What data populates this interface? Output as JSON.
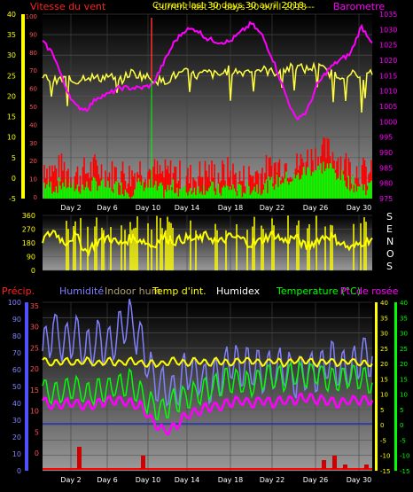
{
  "header": {
    "wind_label": "Vitesse du vent",
    "title": "Current last 30 days  30 avril 2018",
    "title_overlap": "Current last 30 days  30 avril 2018",
    "dash": "---",
    "barometer_label": "Barometre"
  },
  "colors": {
    "wind_label": "#ff2020",
    "title": "#ffff00",
    "barometer": "#ff00ff",
    "gust": "#ff0000",
    "avg_wind": "#00ff00",
    "temperature_top": "#ffff40",
    "direction": "#ffff00",
    "humidity": "#8080ff",
    "indoor_hum": "#b0a070",
    "indoor_temp": "#ffff00",
    "humidex": "#ffffff",
    "outdoor_temp": "#00ff00",
    "dewpoint": "#ff00ff",
    "rain": "#ff0000",
    "right_scale_green": "#00ff00"
  },
  "middle": {
    "compass": [
      "S",
      "E",
      "N",
      "O",
      "S"
    ]
  },
  "bottom_legend": {
    "precip": "Précip.",
    "humidity": "Humidité",
    "indoor_hum": "Indoor hum",
    "indoor_temp": "Temp d'int.",
    "humidex": "Humidex",
    "temperature": "Temperature (°C)",
    "dewpoint": "Pt. de rosée"
  },
  "chart_data": [
    {
      "type": "area",
      "title": "Current last 30 days  30 avril 2018",
      "x_tick_labels": [
        "Day 2",
        "Day 6",
        "Day 10",
        "Day 14",
        "Day 18",
        "Day 22",
        "Day 26",
        "Day 30"
      ],
      "y_left_ticks": [
        40,
        35,
        30,
        25,
        20,
        15,
        10,
        5,
        0,
        -5
      ],
      "y_left_ticks_inner": [
        100,
        90,
        80,
        70,
        60,
        50,
        40,
        30,
        20,
        10,
        0
      ],
      "y_right_ticks": [
        1035,
        1030,
        1025,
        1020,
        1015,
        1010,
        1005,
        1000,
        995,
        990,
        985,
        980,
        975
      ],
      "ylim_left": [
        -5,
        40
      ],
      "ylim_right": [
        975,
        1035
      ],
      "series": [
        {
          "name": "Barometre",
          "values": [
            1026,
            1022,
            1012,
            1005,
            1004,
            1008,
            1009,
            1011,
            1011,
            1011,
            1012,
            1019,
            1026,
            1030,
            1030,
            1027,
            1026,
            1026,
            1029,
            1032,
            1028,
            1020,
            1010,
            1001,
            1003,
            1012,
            1017,
            1020,
            1022,
            1031,
            1026
          ]
        },
        {
          "name": "Temperature",
          "values": [
            1015,
            1013,
            1014,
            1013,
            1015,
            1014,
            1015,
            1013,
            1016,
            1015,
            1014,
            1013,
            1015,
            1016,
            1015,
            1016,
            1015,
            1017,
            1016,
            1017,
            1017,
            1016,
            1017,
            1018,
            1017,
            1018,
            1016,
            1015,
            1016,
            1014,
            1016
          ]
        },
        {
          "name": "Gust",
          "values": [
            7,
            5,
            6,
            4,
            5,
            6,
            4,
            5,
            4,
            6,
            5,
            4,
            5,
            3,
            4,
            5,
            4,
            5,
            3,
            4,
            5,
            6,
            7,
            6,
            8,
            9,
            10,
            8,
            6,
            5,
            4
          ]
        },
        {
          "name": "Avg wind",
          "values": [
            3,
            2,
            3,
            2,
            2,
            3,
            2,
            2,
            1,
            3,
            2,
            1,
            2,
            1,
            2,
            2,
            1,
            2,
            1,
            2,
            2,
            3,
            4,
            4,
            6,
            7,
            7,
            5,
            3,
            2,
            2
          ]
        }
      ]
    },
    {
      "type": "line",
      "name": "Wind direction",
      "x_tick_labels": [
        "Day 2",
        "Day 6",
        "Day 10",
        "Day 14",
        "Day 18",
        "Day 22",
        "Day 26",
        "Day 30"
      ],
      "y_ticks": [
        360,
        270,
        180,
        90,
        0
      ],
      "ylim": [
        0,
        360
      ],
      "compass": [
        "S",
        "E",
        "N",
        "O",
        "S"
      ],
      "values": [
        200,
        260,
        180,
        230,
        120,
        190,
        220,
        170,
        210,
        200,
        160,
        220,
        190,
        210,
        200,
        230,
        180,
        220,
        210,
        170,
        200,
        240,
        190,
        220,
        150,
        200,
        230,
        190,
        140,
        180,
        210
      ]
    },
    {
      "type": "line",
      "x_tick_labels": [
        "Day 2",
        "Day 6",
        "Day 10",
        "Day 14",
        "Day 18",
        "Day 22",
        "Day 26",
        "Day 30"
      ],
      "y_left_ticks_blue": [
        100,
        90,
        80,
        70,
        60,
        50,
        40,
        30,
        20,
        10,
        0
      ],
      "y_left_ticks_red": [
        35,
        30,
        25,
        20,
        15,
        10,
        5,
        0
      ],
      "y_right_ticks": [
        40,
        35,
        30,
        25,
        20,
        15,
        10,
        5,
        0,
        -5,
        -10,
        -15
      ],
      "ylim_right": [
        -15,
        40
      ],
      "series": [
        {
          "name": "Humidité",
          "values": [
            70,
            85,
            75,
            80,
            70,
            78,
            72,
            85,
            90,
            75,
            55,
            50,
            45,
            60,
            58,
            52,
            55,
            65,
            62,
            60,
            58,
            60,
            62,
            55,
            60,
            58,
            65,
            62,
            60,
            70,
            68
          ]
        },
        {
          "name": "Temp d'int.",
          "values": [
            21,
            20,
            21,
            20,
            21,
            20,
            21,
            20,
            21,
            20,
            20,
            20,
            21,
            20,
            21,
            20,
            21,
            20,
            21,
            21,
            20,
            21,
            20,
            21,
            21,
            20,
            21,
            20,
            21,
            20,
            20
          ]
        },
        {
          "name": "Temperature (°C)",
          "values": [
            12,
            10,
            11,
            12,
            10,
            11,
            12,
            13,
            14,
            10,
            6,
            5,
            8,
            9,
            10,
            12,
            13,
            15,
            14,
            13,
            15,
            16,
            15,
            17,
            16,
            17,
            15,
            14,
            16,
            15,
            14
          ]
        },
        {
          "name": "Pt. de rosée",
          "values": [
            8,
            6,
            7,
            7,
            6,
            7,
            8,
            8,
            7,
            6,
            1,
            -2,
            -1,
            3,
            4,
            6,
            6,
            7,
            8,
            7,
            8,
            7,
            8,
            8,
            9,
            8,
            8,
            7,
            8,
            8,
            8
          ]
        },
        {
          "name": "Précip.",
          "values": [
            0,
            0,
            0,
            5,
            0,
            0,
            0,
            0,
            0,
            3,
            0,
            0,
            0,
            0,
            0,
            0,
            0,
            0,
            0,
            0,
            0,
            0,
            0,
            0,
            0,
            0,
            2,
            3,
            1,
            0,
            1
          ]
        }
      ]
    }
  ]
}
